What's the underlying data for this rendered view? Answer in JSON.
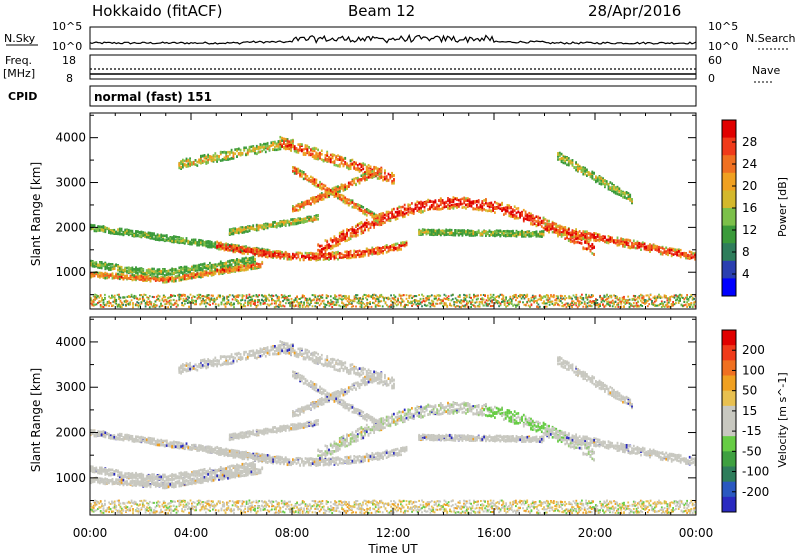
{
  "header": {
    "radar": "Hokkaido (fitACF)",
    "beam": "Beam 12",
    "date": "28/Apr/2016"
  },
  "strip_labels": {
    "nsky": "N.Sky",
    "nsky_ticks": [
      "10^5",
      "10^0"
    ],
    "nsearch": "N.Search",
    "nsearch_ticks": [
      "10^5",
      "10^0"
    ],
    "freq": "Freq.",
    "freq_unit": "[MHz]",
    "freq_ticks": [
      "18",
      "8"
    ],
    "nave": "Nave",
    "nave_ticks": [
      "60",
      "0"
    ],
    "cpid": "CPID",
    "cpid_value": "normal (fast) 151"
  },
  "chart_data": [
    {
      "type": "heatmap",
      "ylabel": "Slant Range [km]",
      "ylim": [
        180,
        4550
      ],
      "y_ticks": [
        1000,
        2000,
        3000,
        4000
      ],
      "xlim_hours": [
        0,
        24
      ],
      "colorbar": {
        "label": "Power [dB]",
        "ticks": [
          "4",
          "8",
          "12",
          "16",
          "20",
          "24",
          "28"
        ],
        "range": [
          0,
          32
        ],
        "colors": [
          "#0000ff",
          "#2a3fb0",
          "#2e7d5b",
          "#3a9a3a",
          "#7cc04a",
          "#d4b82c",
          "#f0a020",
          "#f07020",
          "#f03a1a",
          "#e00000"
        ]
      }
    },
    {
      "type": "heatmap",
      "ylabel": "Slant Range [km]",
      "ylim": [
        180,
        4550
      ],
      "y_ticks": [
        1000,
        2000,
        3000,
        4000
      ],
      "xlim_hours": [
        0,
        24
      ],
      "colorbar": {
        "label": "Velocity [m s^-1]",
        "ticks": [
          "200",
          "100",
          "50",
          "15",
          "-15",
          "-50",
          "-100",
          "-200"
        ],
        "range": [
          -250,
          250
        ],
        "colors": [
          "#2a2ac0",
          "#2a58c0",
          "#2e7d5b",
          "#3ea040",
          "#66cc44",
          "#c8c8c0",
          "#c8c8c0",
          "#e8c050",
          "#f0a020",
          "#f07020",
          "#f03a1a",
          "#e00000"
        ]
      }
    }
  ],
  "x_axis": {
    "label": "Time UT",
    "ticks": [
      "00:00",
      "04:00",
      "08:00",
      "12:00",
      "16:00",
      "20:00",
      "00:00"
    ]
  }
}
